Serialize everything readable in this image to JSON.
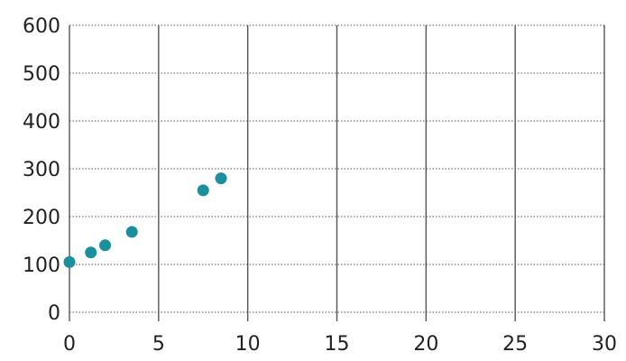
{
  "chart_data": {
    "type": "scatter",
    "title": "",
    "xlabel": "",
    "ylabel": "",
    "xlim": [
      0,
      30
    ],
    "ylim": [
      0,
      600
    ],
    "xticks": [
      "0",
      "5",
      "10",
      "15",
      "20",
      "25",
      "30"
    ],
    "yticks": [
      "0",
      "100",
      "200",
      "300",
      "400",
      "500",
      "600"
    ],
    "grid": true,
    "legend": "none",
    "point_color": "#1b8f9e",
    "series": [
      {
        "x": [
          0,
          1.2,
          2,
          3.5,
          7.5,
          8.5
        ],
        "y": [
          105,
          125,
          140,
          168,
          255,
          280
        ]
      }
    ]
  }
}
